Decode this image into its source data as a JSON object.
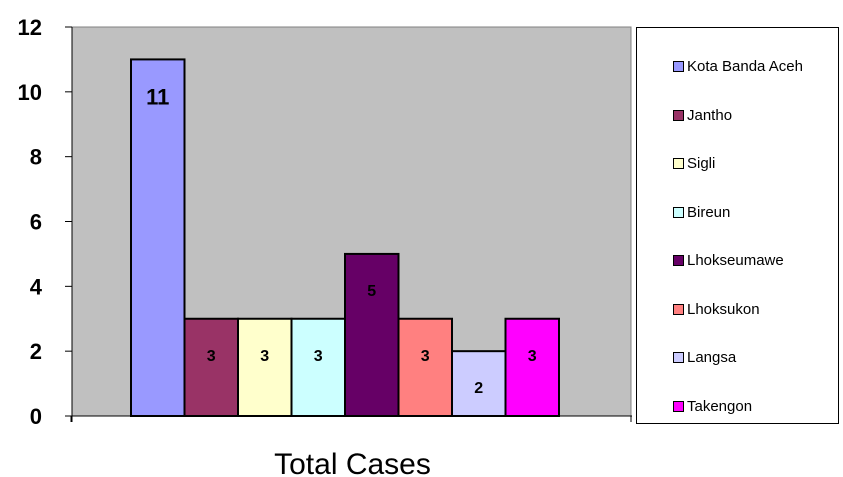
{
  "chart_data": {
    "type": "bar",
    "xlabel": "Total Cases",
    "ylim": [
      0,
      12
    ],
    "yticks": [
      0,
      2,
      4,
      6,
      8,
      10,
      12
    ],
    "grid": false,
    "plot_background": "#c0c0c0",
    "legend_position": "right",
    "series": [
      {
        "name": "Kota Banda Aceh",
        "value": 11,
        "label": "11",
        "color": "#9999ff"
      },
      {
        "name": "Jantho",
        "value": 3,
        "label": "3",
        "color": "#993366"
      },
      {
        "name": "Sigli",
        "value": 3,
        "label": "3",
        "color": "#ffffcc"
      },
      {
        "name": "Bireun",
        "value": 3,
        "label": "3",
        "color": "#ccffff"
      },
      {
        "name": "Lhokseumawe",
        "value": 5,
        "label": "5",
        "color": "#660066"
      },
      {
        "name": "Lhoksukon",
        "value": 3,
        "label": "3",
        "color": "#ff8080"
      },
      {
        "name": "Langsa",
        "value": 2,
        "label": "2",
        "color": "#ccccff"
      },
      {
        "name": "Takengon",
        "value": 3,
        "label": "3",
        "color": "#ff00ff"
      }
    ]
  }
}
